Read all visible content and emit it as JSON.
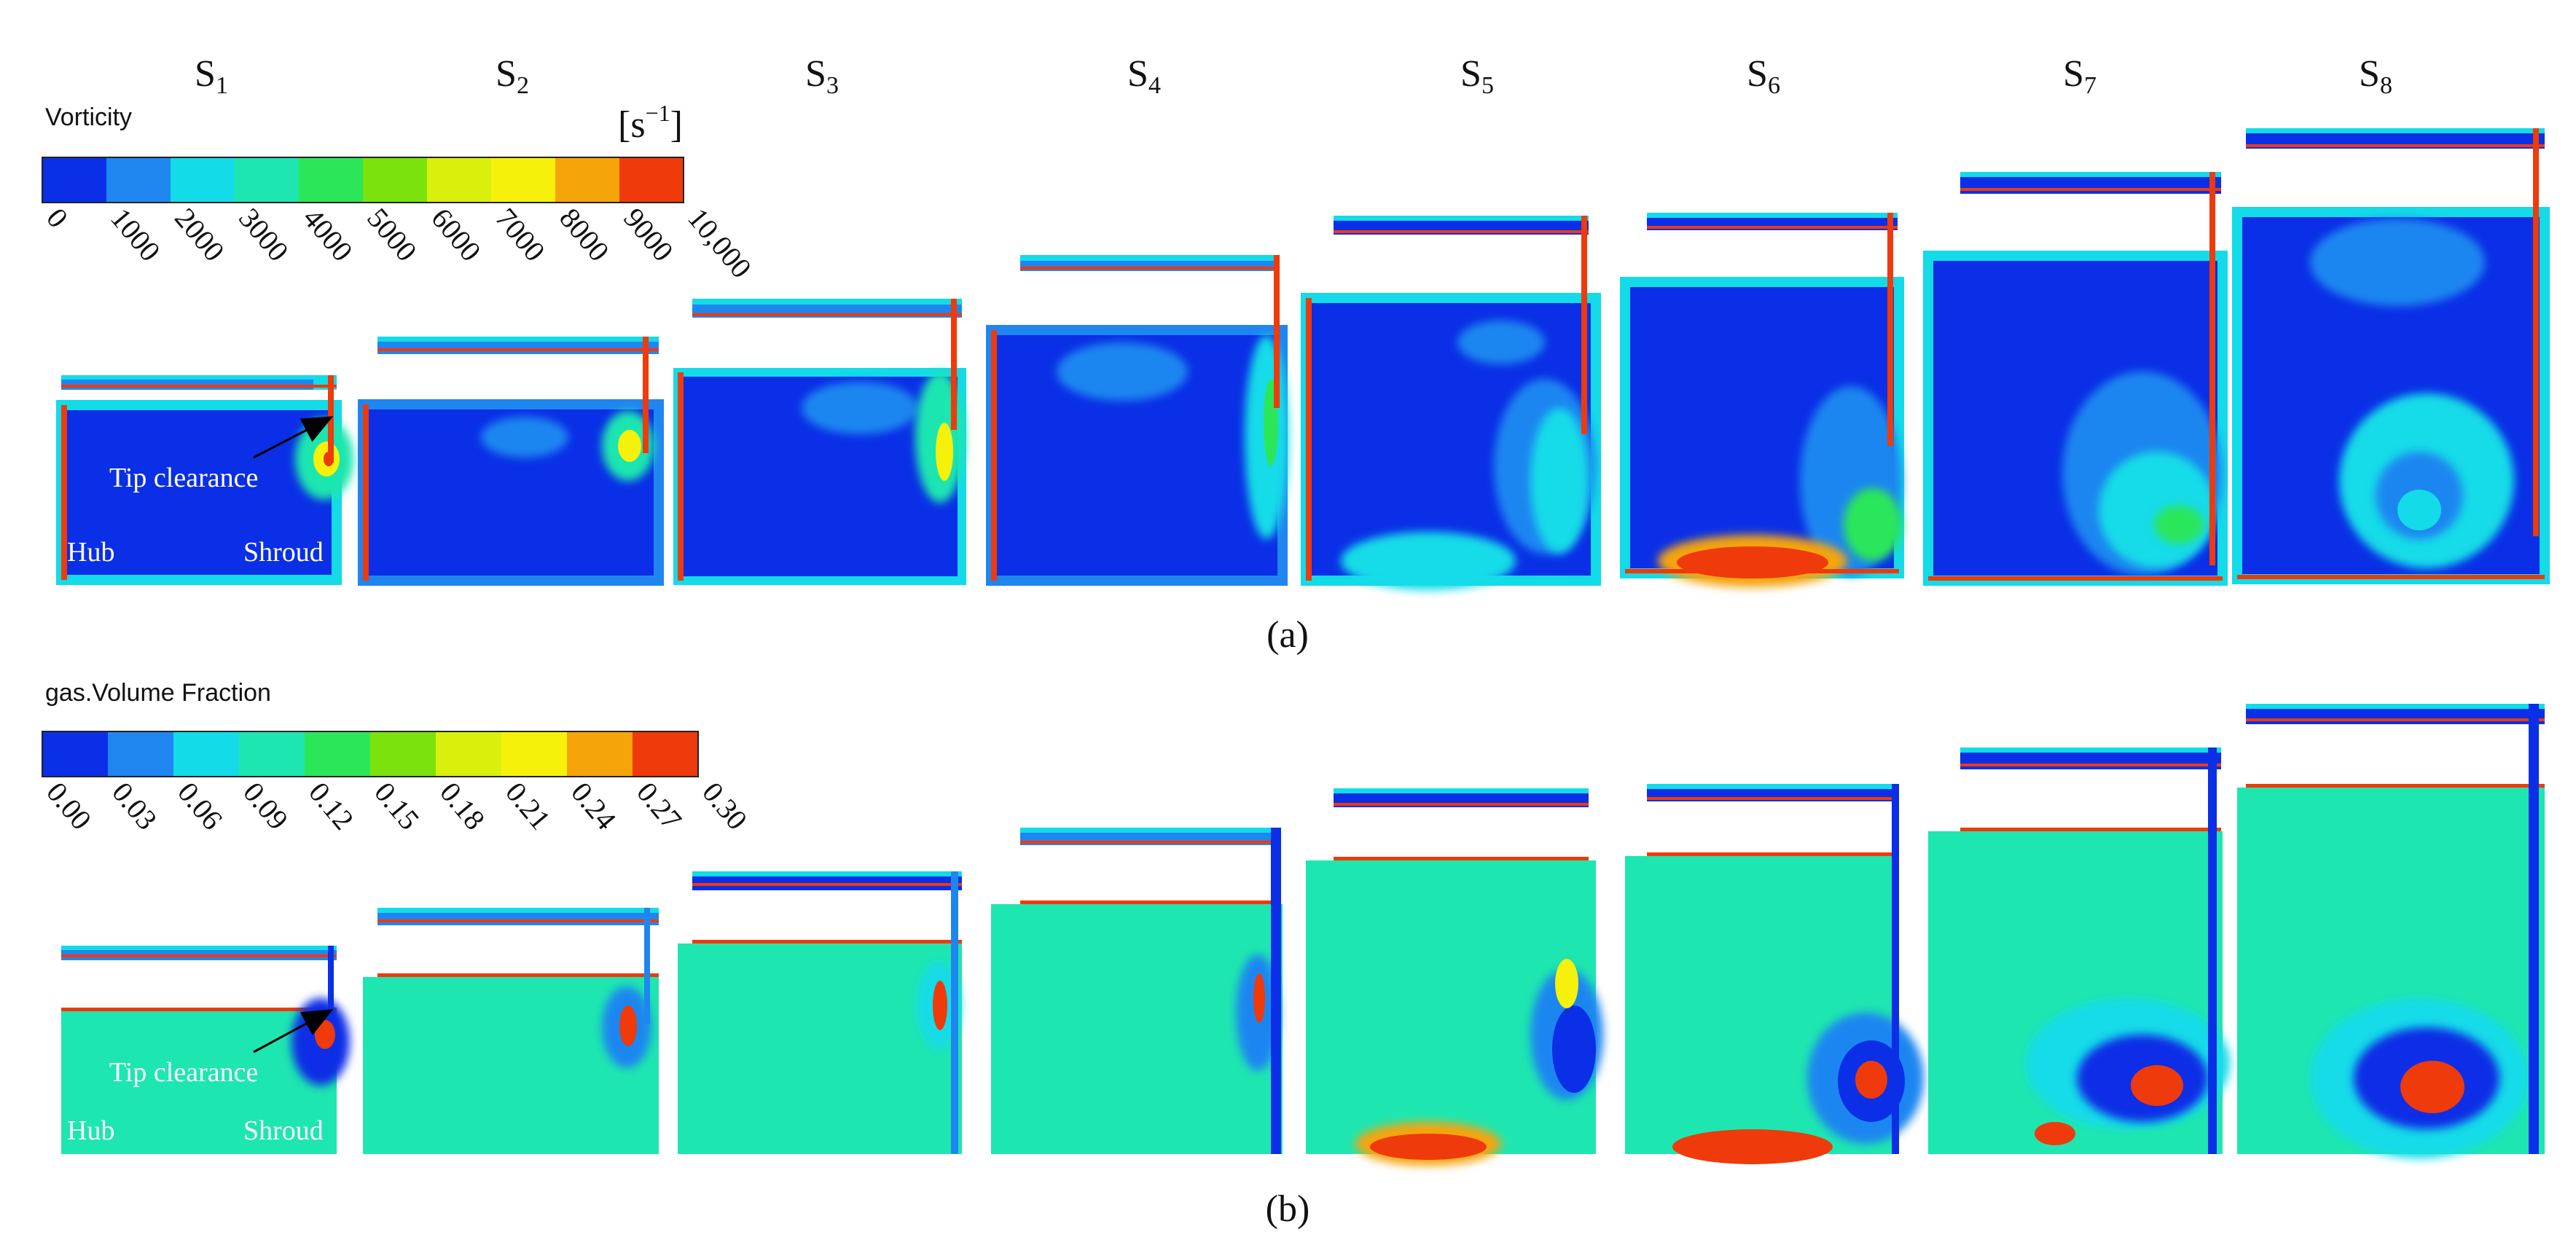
{
  "section_titles": [
    "S",
    "S",
    "S",
    "S",
    "S",
    "S",
    "S",
    "S"
  ],
  "section_subscripts": [
    "1",
    "2",
    "3",
    "4",
    "5",
    "6",
    "7",
    "8"
  ],
  "panel_a": {
    "colorbar_title": "Vorticity",
    "unit_base": "[s",
    "unit_exp": "−1",
    "unit_close": "]",
    "tick_labels": [
      "0",
      "1000",
      "2000",
      "3000",
      "4000",
      "5000",
      "6000",
      "7000",
      "8000",
      "9000",
      "10,000"
    ],
    "caption": "(a)"
  },
  "panel_b": {
    "colorbar_title": "gas.Volume Fraction",
    "tick_labels": [
      "0.00",
      "0.03",
      "0.06",
      "0.09",
      "0.12",
      "0.15",
      "0.18",
      "0.21",
      "0.24",
      "0.27",
      "0.30"
    ],
    "caption": "(b)"
  },
  "annotations": {
    "tip_clearance": "Tip clearance",
    "hub": "Hub",
    "shroud": "Shroud"
  },
  "colors": {
    "colormap": [
      "#0a2fe6",
      "#1f86f0",
      "#13dbe8",
      "#1ee6b0",
      "#2ce65a",
      "#7be20d",
      "#d8f00c",
      "#f5f10a",
      "#f5a40a",
      "#ef3a0b"
    ],
    "deep_blue": "#0a2fe6",
    "light_blue": "#1f86f0",
    "cyan": "#13dbe8",
    "teal": "#1ee6b0",
    "green": "#2ce65a",
    "yellow": "#f5f10a",
    "red": "#ef3a0b"
  }
}
